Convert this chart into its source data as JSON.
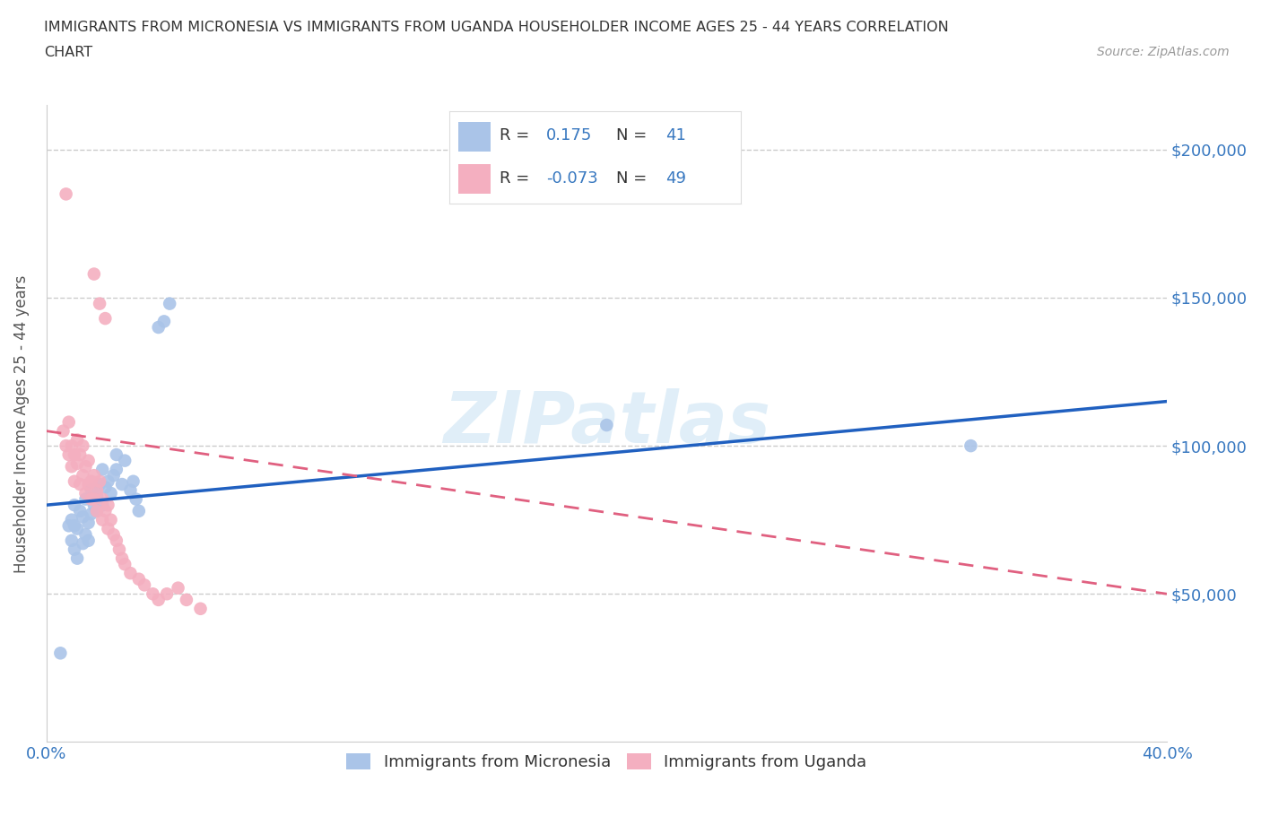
{
  "title_line1": "IMMIGRANTS FROM MICRONESIA VS IMMIGRANTS FROM UGANDA HOUSEHOLDER INCOME AGES 25 - 44 YEARS CORRELATION",
  "title_line2": "CHART",
  "source": "Source: ZipAtlas.com",
  "ylabel": "Householder Income Ages 25 - 44 years",
  "xlim": [
    0.0,
    0.4
  ],
  "ylim": [
    0,
    215000
  ],
  "yticks": [
    0,
    50000,
    100000,
    150000,
    200000
  ],
  "ytick_labels": [
    "",
    "$50,000",
    "$100,000",
    "$150,000",
    "$200,000"
  ],
  "xticks": [
    0.0,
    0.05,
    0.1,
    0.15,
    0.2,
    0.25,
    0.3,
    0.35,
    0.4
  ],
  "micronesia_R": 0.175,
  "micronesia_N": 41,
  "uganda_R": -0.073,
  "uganda_N": 49,
  "micronesia_color": "#aac4e8",
  "uganda_color": "#f4afc0",
  "micronesia_line_color": "#2060c0",
  "uganda_line_color": "#e06080",
  "watermark": "ZIPatlas",
  "mic_trend_x": [
    0.0,
    0.4
  ],
  "mic_trend_y": [
    80000,
    115000
  ],
  "uga_trend_x": [
    0.0,
    0.4
  ],
  "uga_trend_y": [
    105000,
    50000
  ],
  "micronesia_x": [
    0.005,
    0.009,
    0.01,
    0.01,
    0.011,
    0.012,
    0.013,
    0.013,
    0.014,
    0.014,
    0.015,
    0.015,
    0.016,
    0.016,
    0.017,
    0.018,
    0.018,
    0.019,
    0.02,
    0.02,
    0.021,
    0.022,
    0.023,
    0.024,
    0.025,
    0.025,
    0.027,
    0.028,
    0.03,
    0.031,
    0.032,
    0.033,
    0.04,
    0.042,
    0.044,
    0.2,
    0.33,
    0.008,
    0.009,
    0.01,
    0.011
  ],
  "micronesia_y": [
    30000,
    75000,
    73000,
    80000,
    72000,
    78000,
    67000,
    76000,
    70000,
    82000,
    68000,
    74000,
    77000,
    85000,
    80000,
    83000,
    78000,
    87000,
    80000,
    92000,
    86000,
    88000,
    84000,
    90000,
    92000,
    97000,
    87000,
    95000,
    85000,
    88000,
    82000,
    78000,
    140000,
    142000,
    148000,
    107000,
    100000,
    73000,
    68000,
    65000,
    62000
  ],
  "uganda_x": [
    0.006,
    0.007,
    0.008,
    0.008,
    0.009,
    0.009,
    0.01,
    0.01,
    0.011,
    0.011,
    0.012,
    0.012,
    0.013,
    0.013,
    0.014,
    0.014,
    0.015,
    0.015,
    0.016,
    0.016,
    0.017,
    0.017,
    0.018,
    0.018,
    0.019,
    0.02,
    0.02,
    0.021,
    0.022,
    0.022,
    0.023,
    0.024,
    0.025,
    0.026,
    0.027,
    0.028,
    0.03,
    0.033,
    0.035,
    0.038,
    0.04,
    0.043,
    0.047,
    0.05,
    0.055,
    0.007,
    0.017,
    0.019,
    0.021
  ],
  "uganda_y": [
    105000,
    100000,
    97000,
    108000,
    100000,
    93000,
    97000,
    88000,
    102000,
    94000,
    97000,
    87000,
    90000,
    100000,
    93000,
    84000,
    87000,
    95000,
    88000,
    82000,
    90000,
    82000,
    85000,
    78000,
    88000,
    82000,
    75000,
    78000,
    72000,
    80000,
    75000,
    70000,
    68000,
    65000,
    62000,
    60000,
    57000,
    55000,
    53000,
    50000,
    48000,
    50000,
    52000,
    48000,
    45000,
    185000,
    158000,
    148000,
    143000
  ]
}
